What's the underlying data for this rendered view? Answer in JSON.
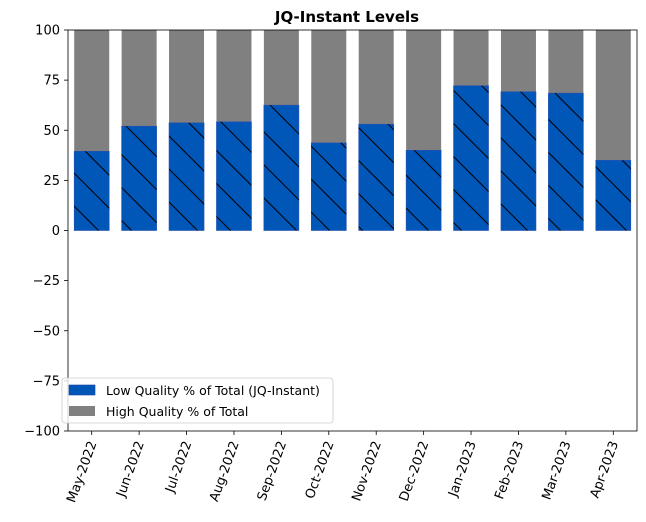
{
  "chart_data": {
    "type": "bar",
    "stacked": true,
    "title": "JQ-Instant Levels",
    "xlabel": "",
    "ylabel": "",
    "ylim": [
      -100,
      100
    ],
    "yticks": [
      100,
      75,
      50,
      25,
      0,
      -25,
      -50,
      -75,
      -100
    ],
    "categories": [
      "May-2022",
      "Jun-2022",
      "Jul-2022",
      "Aug-2022",
      "Sep-2022",
      "Oct-2022",
      "Nov-2022",
      "Dec-2022",
      "Jan-2023",
      "Feb-2023",
      "Mar-2023",
      "Apr-2023"
    ],
    "series": [
      {
        "name": "Low Quality % of Total (JQ-Instant)",
        "color": "#0057b8",
        "hatch": "\\",
        "values": [
          39.5,
          52.0,
          53.7,
          54.2,
          62.5,
          43.7,
          53.0,
          40.0,
          72.2,
          69.2,
          68.5,
          35.0
        ]
      },
      {
        "name": "High Quality % of Total",
        "color": "#808080",
        "values": [
          60.5,
          48.0,
          46.3,
          45.8,
          37.5,
          56.3,
          47.0,
          60.0,
          27.8,
          30.8,
          31.5,
          65.0
        ]
      }
    ],
    "legend": "lower-left",
    "grid": false
  }
}
